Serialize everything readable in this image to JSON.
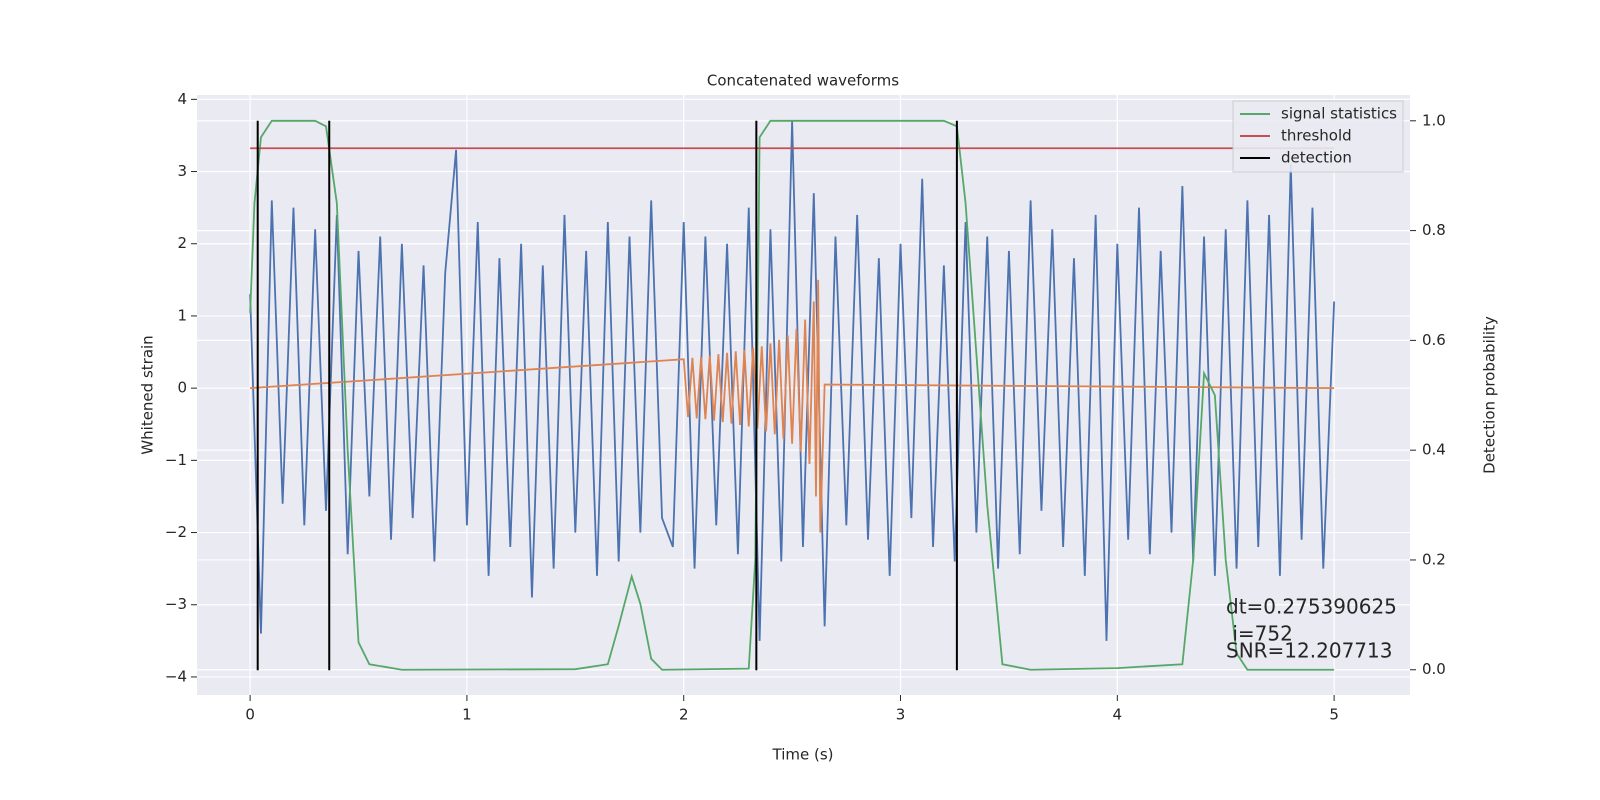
{
  "chart_data": {
    "type": "line",
    "title": "Concatenated waveforms",
    "xlabel": "Time (s)",
    "ylabel": "Whitened strain",
    "y2label": "Detection probability",
    "xlim": [
      -0.245,
      5.35
    ],
    "xticks": [
      0,
      1,
      2,
      3,
      4,
      5
    ],
    "ylim": [
      -4.25,
      4.06
    ],
    "yticks": [
      {
        "value": -4,
        "label": "−4"
      },
      {
        "value": -3,
        "label": "−3"
      },
      {
        "value": -2,
        "label": "−2"
      },
      {
        "value": -1,
        "label": "−1"
      },
      0,
      1,
      2,
      3,
      4
    ],
    "y2lim": [
      -0.046,
      1.047
    ],
    "y2ticks": [
      {
        "value": 0,
        "label": "0.0"
      },
      {
        "value": 0.2,
        "label": "0.2"
      },
      {
        "value": 0.4,
        "label": "0.4"
      },
      {
        "value": 0.6,
        "label": "0.6"
      },
      {
        "value": 0.8,
        "label": "0.8"
      },
      {
        "value": 1,
        "label": "1.0"
      }
    ],
    "grid": true,
    "legend": "upper right",
    "series": [
      {
        "color": "#4c72b0",
        "x": [
          0,
          0.05,
          0.1,
          0.15,
          0.2,
          0.25,
          0.3,
          0.35,
          0.4,
          0.45,
          0.5,
          0.55,
          0.6,
          0.65,
          0.7,
          0.75,
          0.8,
          0.85,
          0.9,
          0.95,
          1,
          1.05,
          1.1,
          1.15,
          1.2,
          1.25,
          1.3,
          1.35,
          1.4,
          1.45,
          1.5,
          1.55,
          1.6,
          1.65,
          1.7,
          1.75,
          1.8,
          1.85,
          1.9,
          1.95,
          2,
          2.05,
          2.1,
          2.15,
          2.2,
          2.25,
          2.3,
          2.35,
          2.4,
          2.45,
          2.5,
          2.55,
          2.6,
          2.65,
          2.7,
          2.75,
          2.8,
          2.85,
          2.9,
          2.95,
          3,
          3.05,
          3.1,
          3.15,
          3.2,
          3.25,
          3.3,
          3.35,
          3.4,
          3.45,
          3.5,
          3.55,
          3.6,
          3.65,
          3.7,
          3.75,
          3.8,
          3.85,
          3.9,
          3.95,
          4,
          4.05,
          4.1,
          4.15,
          4.2,
          4.25,
          4.3,
          4.35,
          4.4,
          4.45,
          4.5,
          4.55,
          4.6,
          4.65,
          4.7,
          4.75,
          4.8,
          4.85,
          4.9,
          4.95,
          5
        ],
        "values": [
          1.3,
          -3.4,
          2.6,
          -1.6,
          2.5,
          -1.9,
          2.2,
          -1.7,
          2.4,
          -2.3,
          1.9,
          -1.5,
          2.1,
          -2.1,
          2.0,
          -1.8,
          1.7,
          -2.4,
          1.6,
          3.3,
          -1.9,
          2.3,
          -2.6,
          1.8,
          -2.2,
          2.0,
          -2.9,
          1.7,
          -2.5,
          2.4,
          -2.0,
          1.9,
          -2.6,
          2.3,
          -2.4,
          2.1,
          -2.0,
          2.6,
          -1.8,
          -2.2,
          2.3,
          -2.5,
          2.1,
          -1.9,
          2.0,
          -2.3,
          2.5,
          -3.5,
          2.2,
          -2.4,
          3.7,
          -2.2,
          2.7,
          -3.3,
          2.1,
          -1.9,
          2.4,
          -2.1,
          1.8,
          -2.6,
          2.0,
          -1.8,
          2.9,
          -2.2,
          1.7,
          -2.4,
          2.3,
          -2.0,
          2.1,
          -2.5,
          1.9,
          -2.3,
          2.6,
          -1.7,
          2.2,
          -2.2,
          1.8,
          -2.6,
          2.4,
          -3.5,
          2.0,
          -2.1,
          2.5,
          -2.3,
          1.9,
          -2.0,
          2.8,
          -2.4,
          2.1,
          -2.6,
          2.2,
          -2.5,
          2.6,
          -2.2,
          2.4,
          -2.6,
          3.1,
          -2.1,
          2.5,
          -2.5,
          1.2
        ]
      },
      {
        "color": "#dd8452",
        "x": [
          0,
          2,
          2.02,
          2.04,
          2.06,
          2.08,
          2.1,
          2.12,
          2.14,
          2.16,
          2.18,
          2.2,
          2.22,
          2.24,
          2.26,
          2.28,
          2.3,
          2.32,
          2.34,
          2.36,
          2.38,
          2.4,
          2.42,
          2.44,
          2.46,
          2.48,
          2.5,
          2.52,
          2.54,
          2.56,
          2.58,
          2.6,
          2.61,
          2.62,
          2.63,
          2.65,
          5
        ],
        "values": [
          0,
          0.4,
          -0.4,
          0.42,
          -0.42,
          0.43,
          -0.43,
          0.45,
          -0.45,
          0.47,
          -0.47,
          0.49,
          -0.49,
          0.51,
          -0.51,
          0.53,
          -0.53,
          0.56,
          -0.56,
          0.58,
          -0.6,
          0.62,
          -0.64,
          0.67,
          -0.7,
          0.73,
          -0.77,
          0.82,
          -0.88,
          0.95,
          -1.05,
          1.2,
          -1.5,
          1.5,
          -2.0,
          0.05,
          0
        ]
      },
      {
        "name": "signal statistics",
        "color": "#55a868",
        "axis": "y2",
        "x": [
          0,
          0.02,
          0.05,
          0.1,
          0.3,
          0.35,
          0.4,
          0.45,
          0.5,
          0.55,
          0.7,
          1.5,
          1.65,
          1.7,
          1.76,
          1.8,
          1.85,
          1.9,
          2.3,
          2.33,
          2.35,
          2.4,
          3.2,
          3.26,
          3.3,
          3.4,
          3.47,
          3.6,
          4,
          4.3,
          4.35,
          4.4,
          4.45,
          4.5,
          4.55,
          4.6,
          5
        ],
        "values": [
          0.65,
          0.85,
          0.97,
          1.0,
          1.0,
          0.99,
          0.85,
          0.4,
          0.05,
          0.01,
          0,
          0.001,
          0.01,
          0.08,
          0.17,
          0.12,
          0.02,
          0,
          0.002,
          0.2,
          0.97,
          1.0,
          1.0,
          0.99,
          0.85,
          0.3,
          0.01,
          0,
          0.003,
          0.01,
          0.2,
          0.54,
          0.5,
          0.2,
          0.03,
          0,
          0
        ]
      },
      {
        "name": "threshold",
        "color": "#c44e52",
        "axis": "y2",
        "x": [
          0,
          5
        ],
        "values": [
          0.95,
          0.95
        ]
      },
      {
        "name": "detection",
        "color": "#000000",
        "vertical": true,
        "values": [
          0.035,
          0.365,
          2.335,
          3.26
        ]
      }
    ],
    "annotations": [
      "dt=0.275390625",
      " i=752",
      "SNR=12.207713"
    ]
  }
}
